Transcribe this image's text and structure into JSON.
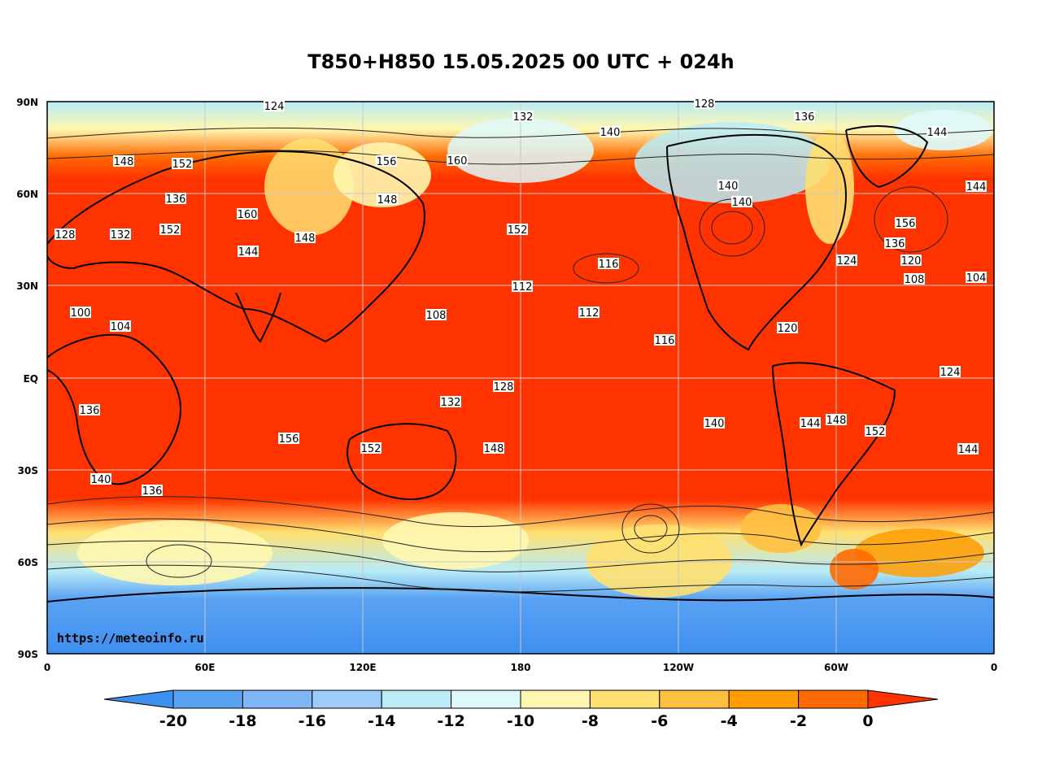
{
  "title": "T850+H850 15.05.2025 00 UTC + 024h",
  "watermark": "https://meteoinfo.ru",
  "lat_labels": [
    "90N",
    "60N",
    "30N",
    "EQ",
    "30S",
    "60S",
    "90S"
  ],
  "lon_labels": [
    "0",
    "60E",
    "120E",
    "180",
    "120W",
    "60W",
    "0"
  ],
  "colorbar": {
    "ticks": [
      "-20",
      "-18",
      "-16",
      "-14",
      "-12",
      "-10",
      "-8",
      "-6",
      "-4",
      "-2",
      "0"
    ],
    "colors": [
      "#3d8ff0",
      "#5aa2f2",
      "#7db5f5",
      "#9cccf7",
      "#b9ecf7",
      "#dff9fb",
      "#fff7b0",
      "#ffe070",
      "#ffc040",
      "#ff9c00",
      "#ff6a00",
      "#ff3300"
    ]
  },
  "contour_labels": [
    "124",
    "128",
    "132",
    "136",
    "140",
    "144",
    "148",
    "152",
    "156",
    "160",
    "136",
    "140",
    "144",
    "148",
    "152",
    "156",
    "160",
    "152",
    "148",
    "144",
    "140",
    "136",
    "132",
    "128",
    "124",
    "120",
    "116",
    "112",
    "108",
    "104",
    "100",
    "104",
    "108",
    "112",
    "116",
    "120",
    "124",
    "128",
    "132",
    "136",
    "140",
    "144",
    "148",
    "152",
    "156",
    "152",
    "148",
    "144",
    "140",
    "136"
  ],
  "colors": {
    "land_outline": "#000000",
    "grid": "#c8c8c8",
    "warm": "#ff3300",
    "cold": "#3d8ff0"
  }
}
